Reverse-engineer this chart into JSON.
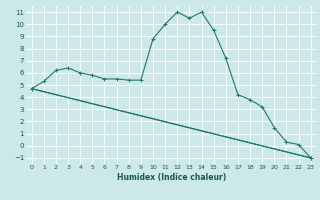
{
  "xlabel": "Humidex (Indice chaleur)",
  "bg_color": "#cce8e8",
  "grid_color": "#ffffff",
  "line_color": "#1a7a6e",
  "xlim": [
    -0.5,
    23.5
  ],
  "ylim": [
    -1.5,
    11.5
  ],
  "xticks": [
    0,
    1,
    2,
    3,
    4,
    5,
    6,
    7,
    8,
    9,
    10,
    11,
    12,
    13,
    14,
    15,
    16,
    17,
    18,
    19,
    20,
    21,
    22,
    23
  ],
  "yticks": [
    -1,
    0,
    1,
    2,
    3,
    4,
    5,
    6,
    7,
    8,
    9,
    10,
    11
  ],
  "series": [
    {
      "x": [
        0,
        1,
        2,
        3,
        4,
        5,
        6,
        7,
        8,
        9,
        10,
        11,
        12,
        13,
        14,
        15,
        16,
        17,
        18,
        19,
        20,
        21,
        22,
        23
      ],
      "y": [
        4.7,
        5.3,
        6.2,
        6.4,
        6.0,
        5.8,
        5.5,
        5.5,
        5.4,
        5.4,
        8.8,
        10.0,
        11.0,
        10.5,
        11.0,
        9.5,
        7.2,
        4.2,
        3.8,
        3.2,
        1.5,
        0.3,
        0.1,
        -1.0
      ]
    },
    {
      "x": [
        0,
        23
      ],
      "y": [
        4.7,
        -1.0
      ]
    },
    {
      "x": [
        0,
        23
      ],
      "y": [
        4.7,
        -1.0
      ]
    }
  ],
  "series_markers": [
    true,
    false,
    true
  ]
}
